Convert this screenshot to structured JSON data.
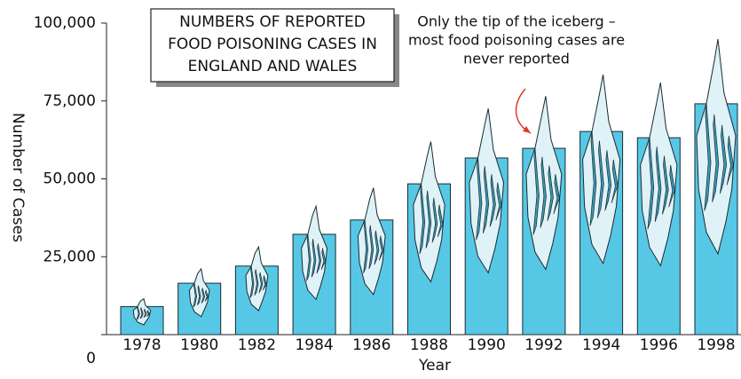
{
  "chart_data": {
    "type": "bar",
    "title": [
      "NUMBERS OF REPORTED",
      "FOOD POISONING CASES IN",
      "ENGLAND AND WALES"
    ],
    "annotation": [
      "Only the tip of the iceberg –",
      "most food poisoning cases are",
      "never reported"
    ],
    "x_label": "Year",
    "y_label": "Number of Cases",
    "categories": [
      "1978",
      "1980",
      "1982",
      "1984",
      "1986",
      "1988",
      "1990",
      "1992",
      "1994",
      "1996",
      "1998"
    ],
    "values": [
      9000,
      16500,
      22000,
      32200,
      36800,
      48400,
      56700,
      59800,
      65200,
      63200,
      74100
    ],
    "color": "#56c8e6",
    "ylim": [
      0,
      100000
    ],
    "yticks": [
      0,
      {
        "value": 25000,
        "label": "25,000"
      },
      {
        "value": 50000,
        "label": "50,000"
      },
      {
        "value": 75000,
        "label": "75,000"
      },
      {
        "value": 100000,
        "label": "100,000"
      }
    ]
  }
}
